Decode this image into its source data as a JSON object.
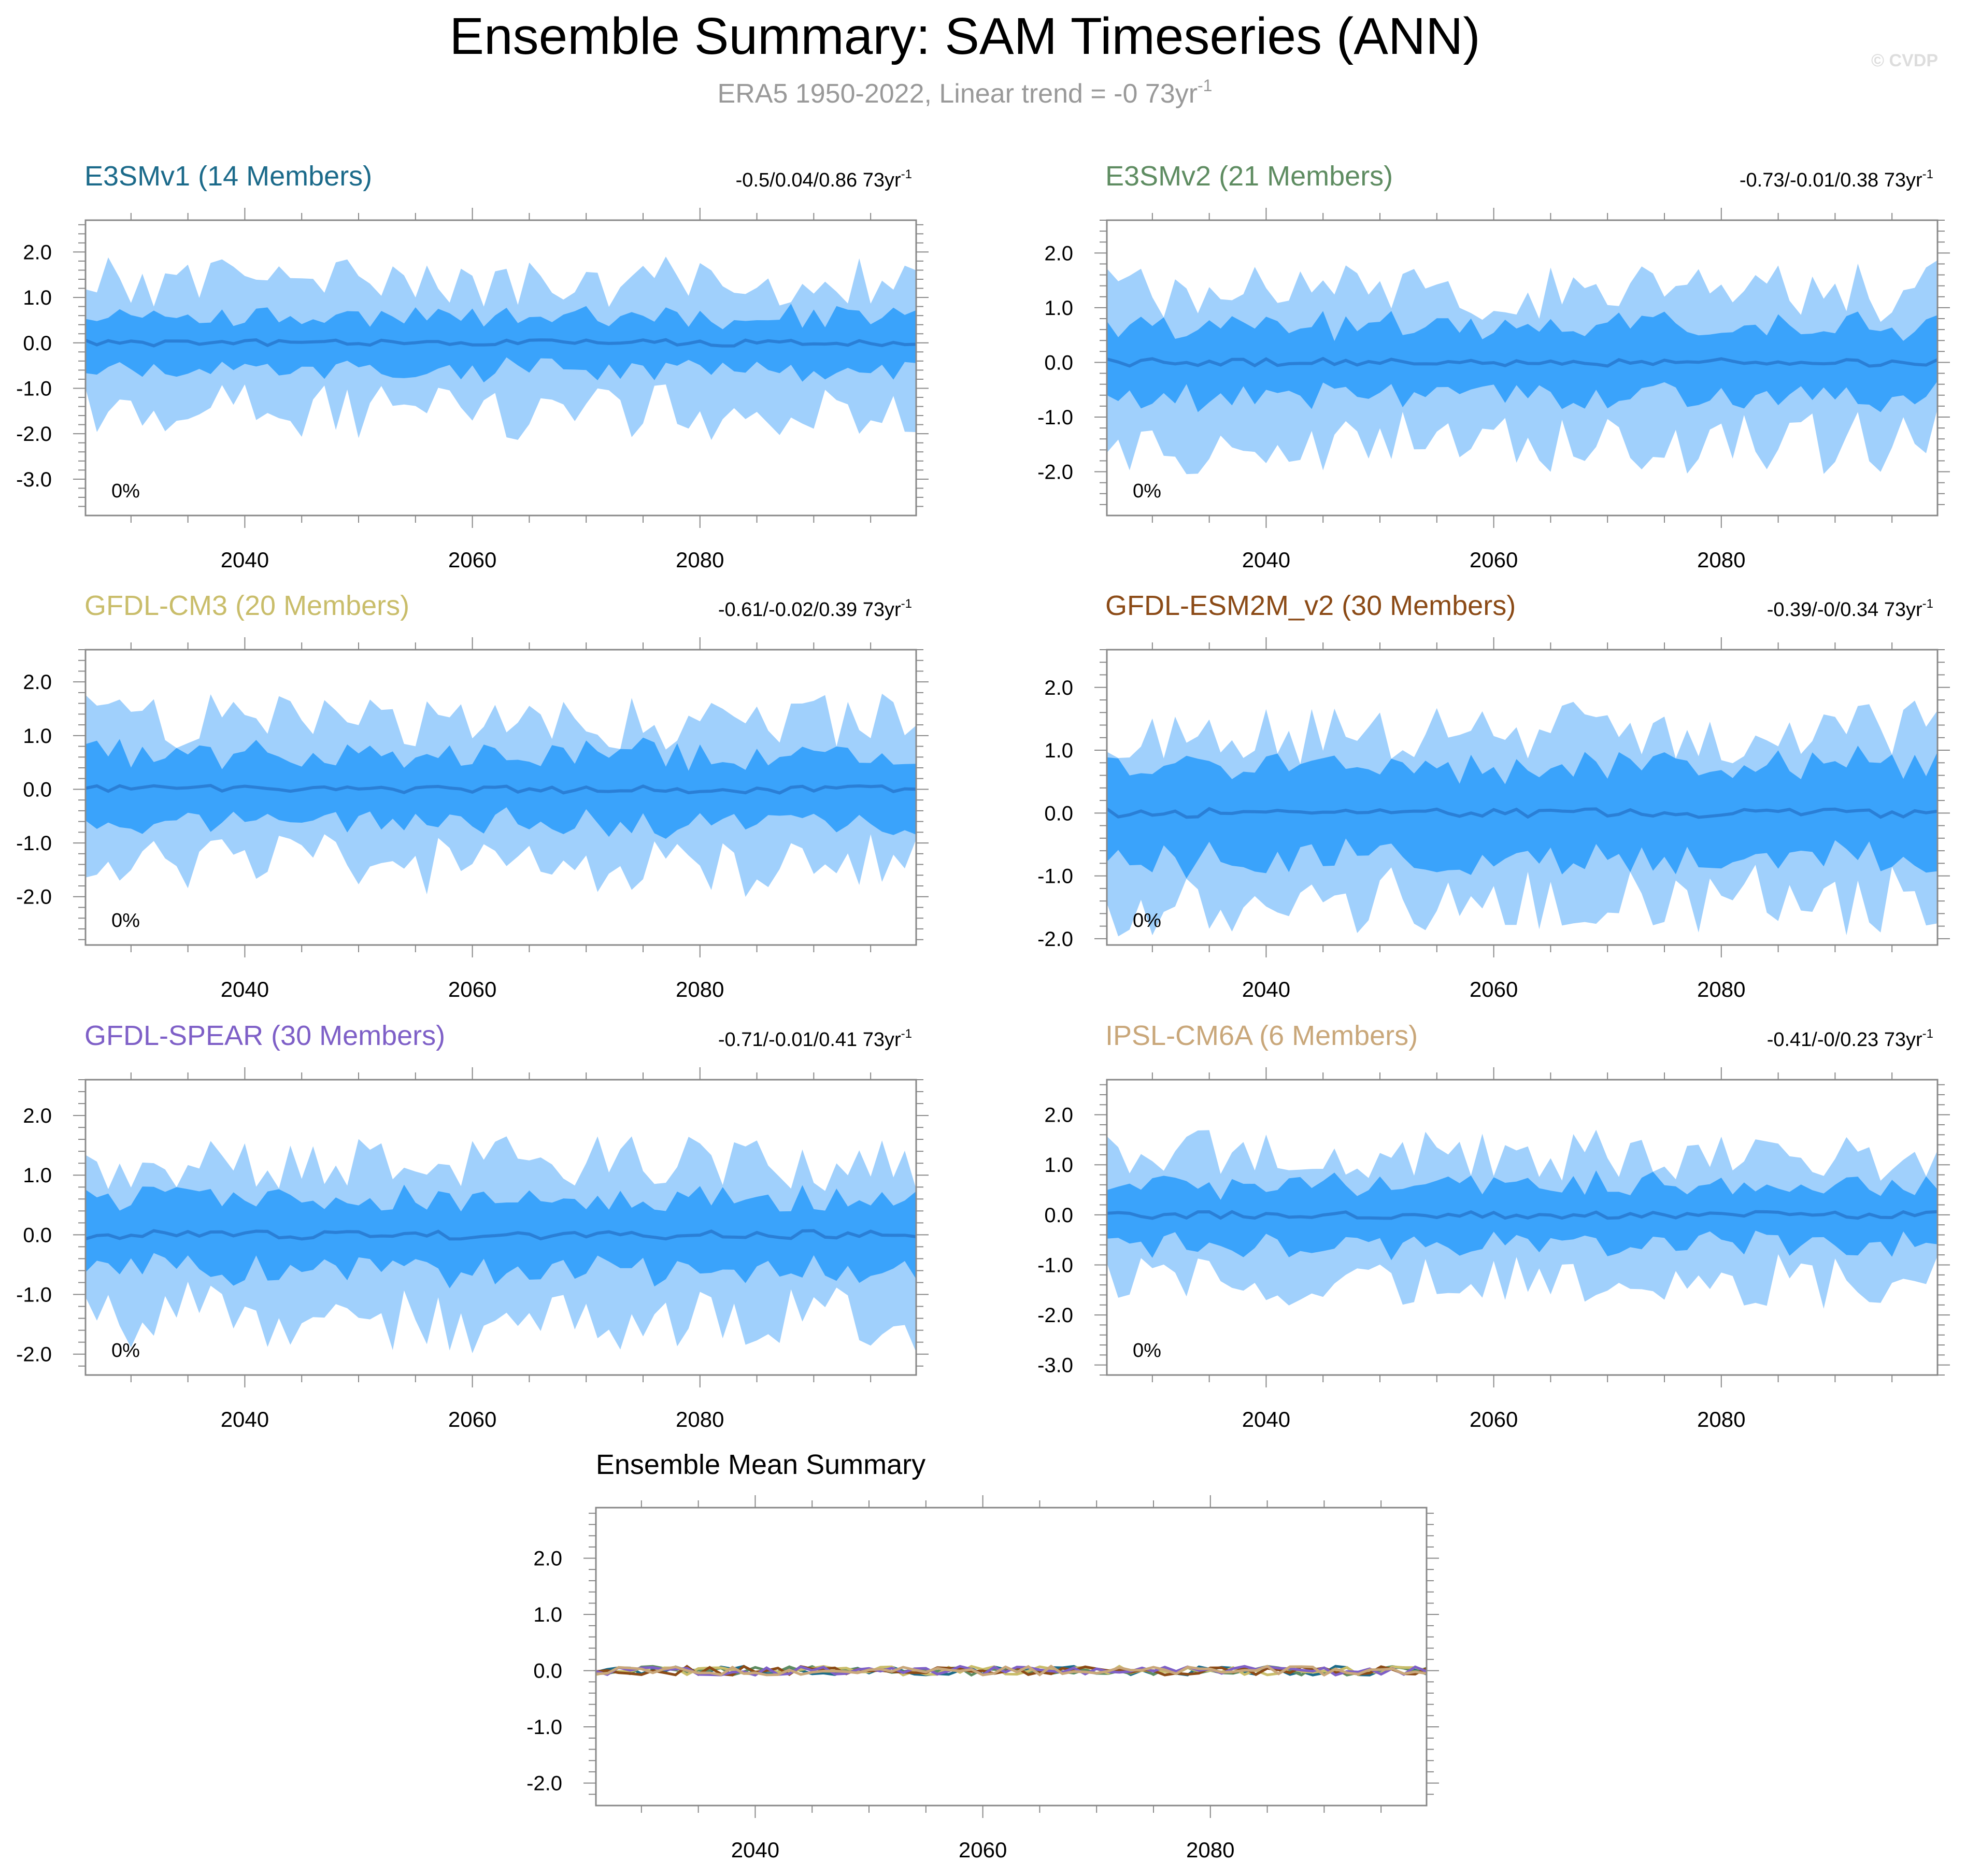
{
  "title": "Ensemble Summary: SAM Timeseries (ANN)",
  "subtitle": {
    "main": "ERA5 1950-2022, Linear trend = -0 73yr",
    "sup": "-1"
  },
  "watermark": "© CVDP",
  "colors": {
    "outer_band": "#a0d0fc",
    "inner_band": "#3aa3fb",
    "median": "#2a7fd6",
    "axis": "#000000",
    "title": "#000000",
    "subtitle": "#999999",
    "watermark": "#dddddd"
  },
  "chart_data": [
    {
      "type": "area",
      "name": "E3SMv1 (14 Members)",
      "title_color": "#1b6a8a",
      "trend_text": "-0.5/0.04/0.86 73yr",
      "trend_sup": "-1",
      "percent_label": "0%",
      "xlim": [
        2026,
        2099
      ],
      "ylim": [
        -3.8,
        2.7
      ],
      "yticks": [
        -3.0,
        -2.0,
        -1.0,
        0.0,
        1.0,
        2.0
      ],
      "ytick_labels": [
        "-3.0",
        "-2.0",
        "-1.0",
        "0.0",
        "1.0",
        "2.0"
      ],
      "xticks": [
        2040,
        2060,
        2080
      ],
      "xtick_labels": [
        "2040",
        "2060",
        "2080"
      ],
      "seed": 11,
      "amp_outer": 1.45,
      "amp_inner": 0.6,
      "range_min": -3.8,
      "range_max": 1.9
    },
    {
      "type": "area",
      "name": "E3SMv2 (21 Members)",
      "title_color": "#5e8c61",
      "trend_text": "-0.73/-0.01/0.38 73yr",
      "trend_sup": "-1",
      "percent_label": "0%",
      "xlim": [
        2026,
        2099
      ],
      "ylim": [
        -2.8,
        2.6
      ],
      "yticks": [
        -2.0,
        -1.0,
        0.0,
        1.0,
        2.0
      ],
      "ytick_labels": [
        "-2.0",
        "-1.0",
        "0.0",
        "1.0",
        "2.0"
      ],
      "xticks": [
        2040,
        2060,
        2080
      ],
      "xtick_labels": [
        "2040",
        "2060",
        "2080"
      ],
      "seed": 23,
      "amp_outer": 1.4,
      "amp_inner": 0.65,
      "range_min": -2.7,
      "range_max": 1.9
    },
    {
      "type": "area",
      "name": "GFDL-CM3 (20 Members)",
      "title_color": "#c9bd6a",
      "trend_text": "-0.61/-0.02/0.39 73yr",
      "trend_sup": "-1",
      "percent_label": "0%",
      "xlim": [
        2026,
        2099
      ],
      "ylim": [
        -2.9,
        2.6
      ],
      "yticks": [
        -2.0,
        -1.0,
        0.0,
        1.0,
        2.0
      ],
      "ytick_labels": [
        "-2.0",
        "-1.0",
        "0.0",
        "1.0",
        "2.0"
      ],
      "xticks": [
        2040,
        2060,
        2080
      ],
      "xtick_labels": [
        "2040",
        "2060",
        "2080"
      ],
      "seed": 37,
      "amp_outer": 1.35,
      "amp_inner": 0.65,
      "range_min": -2.8,
      "range_max": 1.8
    },
    {
      "type": "area",
      "name": "GFDL-ESM2M_v2 (30 Members)",
      "title_color": "#8b4a16",
      "trend_text": "-0.39/-0/0.34 73yr",
      "trend_sup": "-1",
      "percent_label": "0%",
      "xlim": [
        2026,
        2099
      ],
      "ylim": [
        -2.1,
        2.6
      ],
      "yticks": [
        -2.0,
        -1.0,
        0.0,
        1.0,
        2.0
      ],
      "ytick_labels": [
        "-2.0",
        "-1.0",
        "0.0",
        "1.0",
        "2.0"
      ],
      "xticks": [
        2040,
        2060,
        2080
      ],
      "xtick_labels": [
        "2040",
        "2060",
        "2080"
      ],
      "seed": 41,
      "amp_outer": 1.35,
      "amp_inner": 0.75,
      "range_min": -2.1,
      "range_max": 2.0
    },
    {
      "type": "area",
      "name": "GFDL-SPEAR (30 Members)",
      "title_color": "#7e5fc7",
      "trend_text": "-0.71/-0.01/0.41 73yr",
      "trend_sup": "-1",
      "percent_label": "0%",
      "xlim": [
        2026,
        2099
      ],
      "ylim": [
        -2.35,
        2.6
      ],
      "yticks": [
        -2.0,
        -1.0,
        0.0,
        1.0,
        2.0
      ],
      "ytick_labels": [
        "-2.0",
        "-1.0",
        "0.0",
        "1.0",
        "2.0"
      ],
      "xticks": [
        2040,
        2060,
        2080
      ],
      "xtick_labels": [
        "2040",
        "2060",
        "2080"
      ],
      "seed": 53,
      "amp_outer": 1.3,
      "amp_inner": 0.6,
      "range_min": -2.25,
      "range_max": 1.65
    },
    {
      "type": "area",
      "name": "IPSL-CM6A (6 Members)",
      "title_color": "#c9a77a",
      "trend_text": "-0.41/-0/0.23 73yr",
      "trend_sup": "-1",
      "percent_label": "0%",
      "xlim": [
        2026,
        2099
      ],
      "ylim": [
        -3.2,
        2.7
      ],
      "yticks": [
        -3.0,
        -2.0,
        -1.0,
        0.0,
        1.0,
        2.0
      ],
      "ytick_labels": [
        "-3.0",
        "-2.0",
        "-1.0",
        "0.0",
        "1.0",
        "2.0"
      ],
      "xticks": [
        2040,
        2060,
        2080
      ],
      "xtick_labels": [
        "2040",
        "2060",
        "2080"
      ],
      "seed": 67,
      "amp_outer": 1.3,
      "amp_inner": 0.6,
      "range_min": -3.1,
      "range_max": 1.7
    },
    {
      "type": "line",
      "name": "Ensemble Mean Summary",
      "title_color": "#000000",
      "xlim": [
        2026,
        2099
      ],
      "ylim": [
        -2.4,
        2.9
      ],
      "yticks": [
        -2.0,
        -1.0,
        0.0,
        1.0,
        2.0
      ],
      "ytick_labels": [
        "-2.0",
        "-1.0",
        "0.0",
        "1.0",
        "2.0"
      ],
      "xticks": [
        2040,
        2060,
        2080
      ],
      "xtick_labels": [
        "2040",
        "2060",
        "2080"
      ],
      "series": [
        {
          "name": "E3SMv1",
          "color": "#1b6a8a",
          "seed": 11
        },
        {
          "name": "E3SMv2",
          "color": "#5e8c61",
          "seed": 23
        },
        {
          "name": "GFDL-CM3",
          "color": "#c9bd6a",
          "seed": 37
        },
        {
          "name": "GFDL-ESM2M_v2",
          "color": "#8b4a16",
          "seed": 41
        },
        {
          "name": "GFDL-SPEAR",
          "color": "#7e5fc7",
          "seed": 53
        },
        {
          "name": "IPSL-CM6A",
          "color": "#c9a77a",
          "seed": 67
        }
      ]
    }
  ]
}
